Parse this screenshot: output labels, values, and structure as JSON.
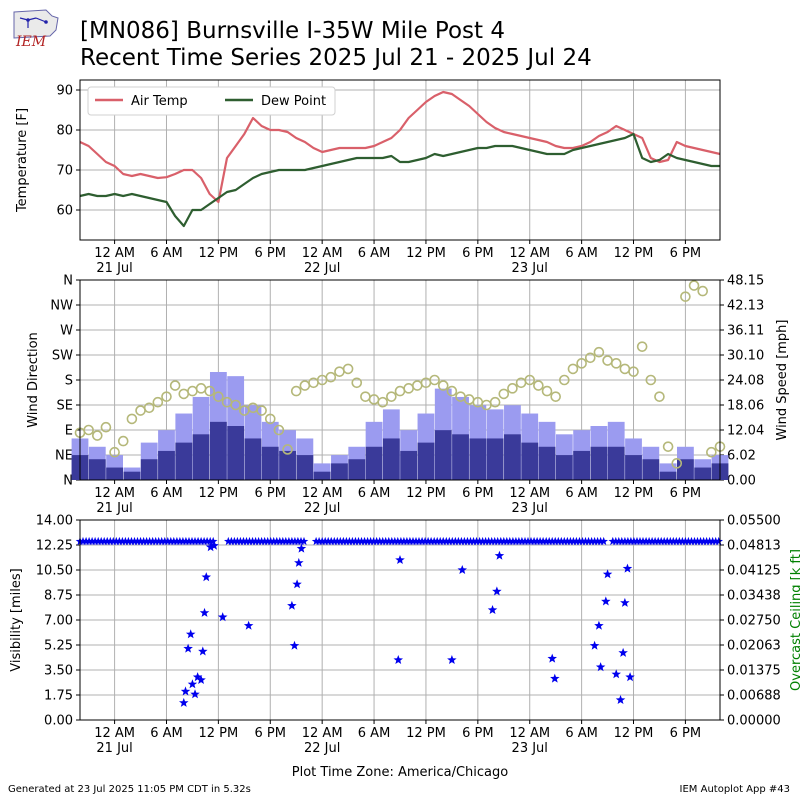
{
  "header": {
    "logo_text": "IEM",
    "title_line1": "[MN086] Burnsville I-35W Mile Post 4",
    "title_line2": "Recent Time Series 2025 Jul 21 - 2025 Jul 24"
  },
  "footer": {
    "generated": "Generated at 23 Jul 2025 11:05 PM CDT in 5.32s",
    "app": "IEM Autoplot App #43"
  },
  "colors": {
    "air_temp": "#d9606a",
    "dew_point": "#2e5e30",
    "wind_dir_marker": "#b5b87a",
    "wind_speed_fill": "#9b9bf0",
    "wind_gust_fill": "#3a3a9a",
    "visibility_marker": "#0000ee",
    "ceiling_axis_label": "#008000"
  },
  "chart_data": [
    {
      "type": "line",
      "x_unit": "hours since 2025-07-20 20:00 CDT",
      "ylabel": "Temperature [F]",
      "ylim": [
        52.5,
        92.5
      ],
      "yticks": [
        60,
        70,
        80,
        90
      ],
      "xlim": [
        0,
        74
      ],
      "grid": true,
      "legend": "top-left",
      "series": [
        {
          "name": "Air Temp",
          "color": "#d9606a",
          "x": [
            0,
            1,
            2,
            3,
            4,
            5,
            6,
            7,
            8,
            9,
            10,
            11,
            12,
            13,
            14,
            15,
            16,
            17,
            18,
            19,
            20,
            21,
            22,
            23,
            24,
            25,
            26,
            27,
            28,
            29,
            30,
            31,
            32,
            33,
            34,
            35,
            36,
            37,
            38,
            39,
            40,
            41,
            42,
            43,
            44,
            45,
            46,
            47,
            48,
            49,
            50,
            51,
            52,
            53,
            54,
            55,
            56,
            57,
            58,
            59,
            60,
            61,
            62,
            63,
            64,
            65,
            66,
            67,
            68,
            69,
            70,
            71,
            72,
            73,
            74
          ],
          "y": [
            77,
            76,
            74,
            72,
            71,
            69,
            68.5,
            69,
            68.5,
            68,
            68.2,
            69,
            70,
            70,
            68,
            64,
            62,
            73,
            76,
            79,
            83,
            81,
            80,
            80,
            79.5,
            78,
            77,
            75.5,
            74.5,
            75,
            75.5,
            75.5,
            75.5,
            75.5,
            76,
            77,
            78,
            80,
            83,
            85,
            87,
            88.5,
            89.5,
            89,
            87.5,
            86,
            84,
            82,
            80.5,
            79.5,
            79,
            78.5,
            78,
            77.5,
            77,
            76,
            75.5,
            75.5,
            76,
            77,
            78.5,
            79.5,
            81,
            80,
            79,
            78,
            73,
            72,
            72.5,
            77,
            76,
            75.5,
            75,
            74.5,
            74
          ]
        },
        {
          "name": "Dew Point",
          "color": "#2e5e30",
          "x": [
            0,
            1,
            2,
            3,
            4,
            5,
            6,
            7,
            8,
            9,
            10,
            11,
            12,
            13,
            14,
            15,
            16,
            17,
            18,
            19,
            20,
            21,
            22,
            23,
            24,
            25,
            26,
            27,
            28,
            29,
            30,
            31,
            32,
            33,
            34,
            35,
            36,
            37,
            38,
            39,
            40,
            41,
            42,
            43,
            44,
            45,
            46,
            47,
            48,
            49,
            50,
            51,
            52,
            53,
            54,
            55,
            56,
            57,
            58,
            59,
            60,
            61,
            62,
            63,
            64,
            65,
            66,
            67,
            68,
            69,
            70,
            71,
            72,
            73,
            74
          ],
          "y": [
            63.5,
            64,
            63.5,
            63.5,
            64,
            63.5,
            64,
            63.5,
            63,
            62.5,
            62,
            58.5,
            56,
            60,
            60,
            61.5,
            63,
            64.5,
            65,
            66.5,
            68,
            69,
            69.5,
            70,
            70,
            70,
            70,
            70.5,
            71,
            71.5,
            72,
            72.5,
            73,
            73,
            73,
            73,
            73.5,
            72,
            72,
            72.5,
            73,
            74,
            73.5,
            74,
            74.5,
            75,
            75.5,
            75.5,
            76,
            76,
            76,
            75.5,
            75,
            74.5,
            74,
            74,
            74,
            75,
            75.5,
            76,
            76.5,
            77,
            77.5,
            78,
            79,
            73,
            72,
            72.5,
            74,
            73,
            72.5,
            72,
            71.5,
            71,
            71
          ]
        }
      ]
    },
    {
      "type": "bar",
      "x_unit": "hours since 2025-07-20 20:00 CDT",
      "ylabel_left": "Wind Direction",
      "ylabel_right": "Wind Speed [mph]",
      "ylim_right": [
        0,
        48.15
      ],
      "yticks_right": [
        "0.00",
        "6.02",
        "12.04",
        "18.06",
        "24.08",
        "30.10",
        "36.11",
        "42.13",
        "48.15"
      ],
      "yticks_left": [
        "N",
        "NE",
        "E",
        "SE",
        "S",
        "SW",
        "W",
        "NW",
        "N"
      ],
      "xlim": [
        0,
        74
      ],
      "grid": true,
      "series": [
        {
          "name": "Wind Speed",
          "x": [
            0,
            2,
            4,
            6,
            8,
            10,
            12,
            14,
            16,
            18,
            20,
            22,
            24,
            26,
            28,
            30,
            32,
            34,
            36,
            38,
            40,
            42,
            44,
            46,
            48,
            50,
            52,
            54,
            56,
            58,
            60,
            62,
            64,
            66,
            68,
            70,
            72,
            74
          ],
          "y": [
            10,
            8,
            6,
            3,
            9,
            12,
            16,
            20,
            26,
            25,
            18,
            14,
            12,
            10,
            4,
            6,
            8,
            14,
            17,
            12,
            16,
            22,
            20,
            18,
            17,
            18,
            16,
            14,
            11,
            12,
            13,
            14,
            10,
            8,
            4,
            8,
            5,
            6
          ]
        },
        {
          "name": "Wind Gust",
          "x": [
            0,
            2,
            4,
            6,
            8,
            10,
            12,
            14,
            16,
            18,
            20,
            22,
            24,
            26,
            28,
            30,
            32,
            34,
            36,
            38,
            40,
            42,
            44,
            46,
            48,
            50,
            52,
            54,
            56,
            58,
            60,
            62,
            64,
            66,
            68,
            70,
            72,
            74
          ],
          "y": [
            6,
            5,
            3,
            2,
            5,
            7,
            9,
            11,
            14,
            13,
            10,
            8,
            7,
            6,
            2,
            4,
            5,
            8,
            10,
            7,
            9,
            12,
            11,
            10,
            10,
            11,
            9,
            8,
            6,
            7,
            8,
            8,
            6,
            5,
            2,
            5,
            3,
            4
          ]
        },
        {
          "name": "Wind Direction",
          "unit": "degrees",
          "x": [
            0,
            1,
            2,
            3,
            4,
            5,
            6,
            7,
            8,
            9,
            10,
            11,
            12,
            13,
            14,
            15,
            16,
            17,
            18,
            19,
            20,
            21,
            22,
            23,
            24,
            25,
            26,
            27,
            28,
            29,
            30,
            31,
            32,
            33,
            34,
            35,
            36,
            37,
            38,
            39,
            40,
            41,
            42,
            43,
            44,
            45,
            46,
            47,
            48,
            49,
            50,
            51,
            52,
            53,
            54,
            55,
            56,
            57,
            58,
            59,
            60,
            61,
            62,
            63,
            64,
            65,
            66,
            67,
            68,
            69,
            70,
            71,
            72,
            73,
            74
          ],
          "y": [
            85,
            90,
            80,
            95,
            50,
            70,
            110,
            125,
            130,
            140,
            150,
            170,
            155,
            160,
            165,
            160,
            150,
            140,
            135,
            125,
            130,
            125,
            110,
            90,
            55,
            160,
            170,
            175,
            180,
            185,
            195,
            200,
            175,
            150,
            145,
            140,
            150,
            160,
            165,
            170,
            175,
            180,
            170,
            160,
            150,
            145,
            140,
            135,
            140,
            155,
            165,
            175,
            180,
            170,
            160,
            150,
            180,
            200,
            210,
            220,
            230,
            215,
            210,
            200,
            195,
            240,
            180,
            150,
            60,
            30,
            330,
            350,
            340,
            50,
            60
          ]
        }
      ]
    },
    {
      "type": "scatter",
      "x_unit": "hours since 2025-07-20 20:00 CDT",
      "ylabel_left": "Visibility [miles]",
      "ylabel_right": "Overcast Ceiling [k ft]",
      "ylim_left": [
        0,
        14
      ],
      "yticks_left": [
        "0.00",
        "1.75",
        "3.50",
        "5.25",
        "7.00",
        "8.75",
        "10.50",
        "12.25",
        "14.00"
      ],
      "ylim_right": [
        0,
        0.055
      ],
      "yticks_right": [
        "0.00000",
        "0.00688",
        "0.01375",
        "0.02063",
        "0.02750",
        "0.03438",
        "0.04125",
        "0.04813",
        "0.05500"
      ],
      "xlim": [
        0,
        74
      ],
      "grid": true,
      "baseline_visibility": 12.5,
      "series": [
        {
          "name": "Visibility",
          "x": [
            12.0,
            12.2,
            12.5,
            12.8,
            13.0,
            13.3,
            13.6,
            14.0,
            14.2,
            14.4,
            14.6,
            15.1,
            15.5,
            16.5,
            19.5,
            24.5,
            24.8,
            25.1,
            25.3,
            25.6,
            36.8,
            37.0,
            43.0,
            44.2,
            47.7,
            48.2,
            48.5,
            54.6,
            54.9,
            59.5,
            60.0,
            60.2,
            60.8,
            61.0,
            62.0,
            62.5,
            62.8,
            63.0,
            63.3,
            63.6
          ],
          "y": [
            1.2,
            2.0,
            5.0,
            6.0,
            2.5,
            1.8,
            3.0,
            2.8,
            4.8,
            7.5,
            10.0,
            12.1,
            12.2,
            7.2,
            6.6,
            8.0,
            5.2,
            9.5,
            11.0,
            12.0,
            4.2,
            11.2,
            4.2,
            10.5,
            7.7,
            9.0,
            11.5,
            4.3,
            2.9,
            5.2,
            6.6,
            3.7,
            8.3,
            10.2,
            3.2,
            1.4,
            4.7,
            8.2,
            10.6,
            3.0
          ]
        }
      ]
    }
  ],
  "axes_text": {
    "xticks": [
      "12 AM",
      "6 AM",
      "12 PM",
      "6 PM",
      "12 AM",
      "6 AM",
      "12 PM",
      "6 PM",
      "12 AM",
      "6 AM",
      "12 PM",
      "6 PM"
    ],
    "xtick_hours": [
      4,
      10,
      16,
      22,
      28,
      34,
      40,
      46,
      52,
      58,
      64,
      70
    ],
    "date_labels": [
      {
        "text": "21 Jul",
        "hour": 4
      },
      {
        "text": "22 Jul",
        "hour": 28
      },
      {
        "text": "23 Jul",
        "hour": 52
      }
    ],
    "xlabel_bottom": "Plot Time Zone: America/Chicago"
  }
}
